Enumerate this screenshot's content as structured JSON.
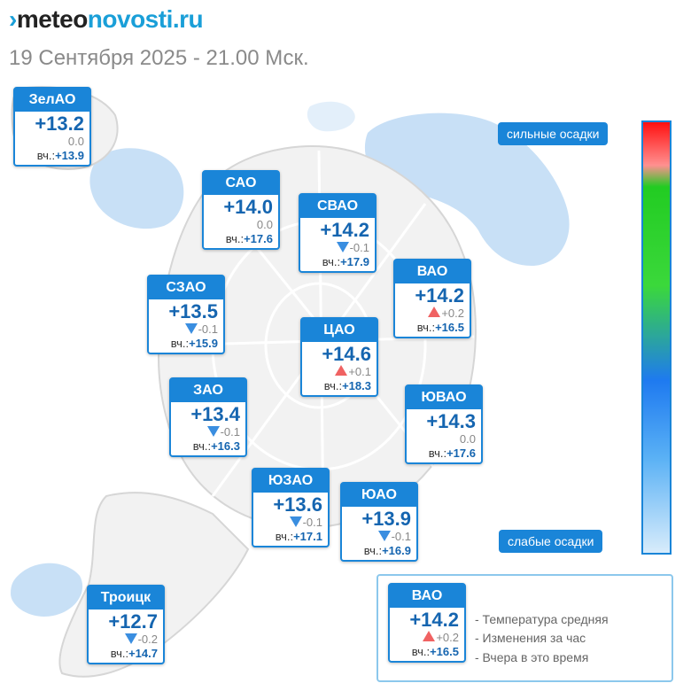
{
  "header": {
    "logo_prefix": "›",
    "logo_part1": "meteo",
    "logo_part2": "novosti.ru",
    "date_line": "19 Сентября 2025 - 21.00 Мск."
  },
  "colors": {
    "accent": "#1a85d8",
    "rise": "#f06262",
    "fall": "#3a8ee0",
    "precip_blue": "#b5d5f3"
  },
  "districts": [
    {
      "name": "ЗелАО",
      "temp": "+13.2",
      "change": "0.0",
      "trend": "none",
      "yesterday_label": "вч.:",
      "yesterday": "+13.9"
    },
    {
      "name": "САО",
      "temp": "+14.0",
      "change": "0.0",
      "trend": "none",
      "yesterday_label": "вч.:",
      "yesterday": "+17.6"
    },
    {
      "name": "СВАО",
      "temp": "+14.2",
      "change": "-0.1",
      "trend": "down",
      "yesterday_label": "вч.:",
      "yesterday": "+17.9"
    },
    {
      "name": "ВАО",
      "temp": "+14.2",
      "change": "+0.2",
      "trend": "up",
      "yesterday_label": "вч.:",
      "yesterday": "+16.5"
    },
    {
      "name": "СЗАО",
      "temp": "+13.5",
      "change": "-0.1",
      "trend": "down",
      "yesterday_label": "вч.:",
      "yesterday": "+15.9"
    },
    {
      "name": "ЦАО",
      "temp": "+14.6",
      "change": "+0.1",
      "trend": "up",
      "yesterday_label": "вч.:",
      "yesterday": "+18.3"
    },
    {
      "name": "ЗАО",
      "temp": "+13.4",
      "change": "-0.1",
      "trend": "down",
      "yesterday_label": "вч.:",
      "yesterday": "+16.3"
    },
    {
      "name": "ЮВАО",
      "temp": "+14.3",
      "change": "0.0",
      "trend": "none",
      "yesterday_label": "вч.:",
      "yesterday": "+17.6"
    },
    {
      "name": "ЮЗАО",
      "temp": "+13.6",
      "change": "-0.1",
      "trend": "down",
      "yesterday_label": "вч.:",
      "yesterday": "+17.1"
    },
    {
      "name": "ЮАО",
      "temp": "+13.9",
      "change": "-0.1",
      "trend": "down",
      "yesterday_label": "вч.:",
      "yesterday": "+16.9"
    },
    {
      "name": "Троицк",
      "temp": "+12.7",
      "change": "-0.2",
      "trend": "down",
      "yesterday_label": "вч.:",
      "yesterday": "+14.7"
    }
  ],
  "scale": {
    "top_label": "сильные осадки",
    "bottom_label": "слабые осадки"
  },
  "legend": {
    "example": {
      "name": "ВАО",
      "temp": "+14.2",
      "change": "+0.2",
      "trend": "up",
      "yesterday_label": "вч.:",
      "yesterday": "+16.5"
    },
    "lines": [
      "- Температура средняя",
      "- Изменения за час",
      "- Вчера в это время"
    ]
  }
}
